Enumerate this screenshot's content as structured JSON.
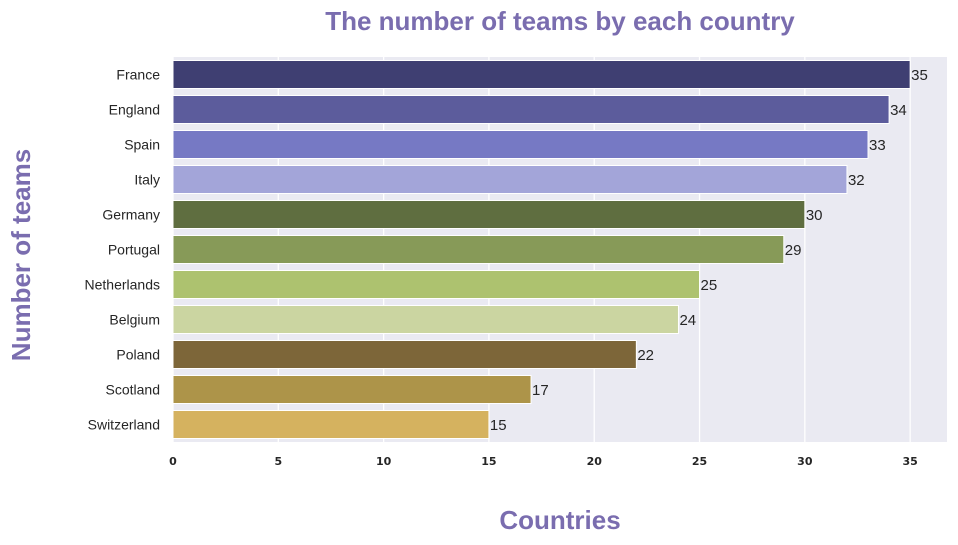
{
  "chart_data": {
    "type": "bar",
    "orientation": "horizontal",
    "title": "The number of teams by each country",
    "xlabel": "Countries",
    "ylabel": "Number of teams",
    "categories": [
      "France",
      "England",
      "Spain",
      "Italy",
      "Germany",
      "Portugal",
      "Netherlands",
      "Belgium",
      "Poland",
      "Scotland",
      "Switzerland"
    ],
    "values": [
      35,
      34,
      33,
      32,
      30,
      29,
      25,
      24,
      22,
      17,
      15
    ],
    "value_labels": [
      "35",
      "34",
      "33",
      "32",
      "30",
      "29",
      "25",
      "24",
      "22",
      "17",
      "15"
    ],
    "bar_colors": [
      "#3f3f72",
      "#5c5c9c",
      "#7679c4",
      "#a3a5d9",
      "#5f6e40",
      "#879a58",
      "#adc26f",
      "#cbd5a1",
      "#7d6639",
      "#ad9449",
      "#d5b25f"
    ],
    "xticks": [
      0,
      5,
      10,
      15,
      20,
      25,
      30,
      35
    ],
    "xtick_labels": [
      "0",
      "5",
      "10",
      "15",
      "20",
      "25",
      "30",
      "35"
    ],
    "xlim": [
      0,
      36.75
    ],
    "grid": true,
    "legend": "none",
    "colors": {
      "title": "#7a6daf",
      "axes_background": "#eaeaf2",
      "grid": "#ffffff",
      "text": "#262626"
    }
  }
}
